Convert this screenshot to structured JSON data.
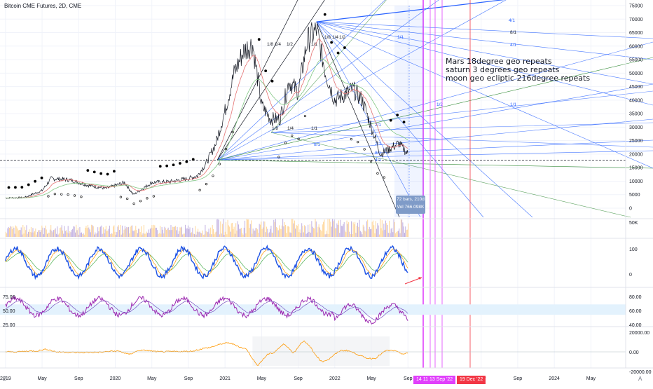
{
  "header": {
    "ticker": "Bitcoin CME Futures, 2D, CME"
  },
  "annotation": {
    "lines": [
      "Mars 18degree geo repeats",
      "saturn 3 degrees geo repeats",
      "moon geo ecliptic 216degree repeats"
    ]
  },
  "measure_label": {
    "bars": "72 bars, 210d",
    "vol": "Vol 766.098K"
  },
  "date_flags": {
    "magenta": "14  11  13 Sep '22",
    "red": "19 Dec '22"
  },
  "corner_badges": {
    "left": "Z",
    "right": "A"
  },
  "colors": {
    "price": "#131722",
    "sar": "#000000",
    "ema_red": "#e57373",
    "ema_green": "#81c784",
    "fan_blue": "#2962ff",
    "fan_green": "#388e3c",
    "fan_black": "#131722",
    "vline_magenta": "#e040fb",
    "vline_red": "#f23645",
    "osc_blue": "#1e53e5",
    "osc_orange": "#ff9800",
    "osc_green": "#4caf50",
    "rsi_purple": "#9c27b0",
    "rsi_band": "#e3f2fd",
    "macd_orange": "#ff9800",
    "macd_blue": "#2962ff",
    "volume": "#b39ddb",
    "grid": "#f0f3fa",
    "axis_text": "#131722"
  },
  "fan_labels": [
    "1/8",
    "1/4",
    "1/2",
    "1/1",
    "1/8",
    "1/4",
    "1/2",
    "1/1",
    "1/8",
    "1/4",
    "8/1",
    "4/1",
    "2/1",
    "1/1",
    "1/2",
    "2/1",
    "8/1",
    "4/1",
    "8/1",
    "4/1",
    "1/1"
  ],
  "chart_data": [
    {
      "type": "line",
      "name": "price",
      "x": [
        "2019-01",
        "2019-03",
        "2019-05",
        "2019-06",
        "2019-08",
        "2019-10",
        "2019-12",
        "2020-02",
        "2020-03",
        "2020-05",
        "2020-07",
        "2020-09",
        "2020-10",
        "2020-11",
        "2020-12",
        "2021-01",
        "2021-02",
        "2021-03",
        "2021-04",
        "2021-05",
        "2021-06",
        "2021-07",
        "2021-08",
        "2021-09",
        "2021-10",
        "2021-11",
        "2021-12",
        "2022-01",
        "2022-02",
        "2022-03",
        "2022-04",
        "2022-05",
        "2022-06",
        "2022-07",
        "2022-08",
        "2022-09"
      ],
      "y": [
        3800,
        3900,
        6500,
        11000,
        10500,
        8500,
        7300,
        9500,
        5000,
        9500,
        9800,
        11000,
        12000,
        17000,
        24000,
        36000,
        50000,
        58000,
        61000,
        38000,
        33000,
        33000,
        47000,
        43000,
        62000,
        66000,
        50000,
        40000,
        42000,
        44000,
        40000,
        30000,
        20000,
        22000,
        24000,
        20000
      ],
      "ylim": [
        -4000,
        76000
      ],
      "yticks": [
        "75000",
        "70000",
        "65000",
        "60000",
        "55000",
        "50000",
        "45000",
        "40000",
        "35000",
        "30000",
        "25000",
        "20000",
        "15000",
        "10000",
        "5000",
        "0"
      ],
      "reference_line": 17800
    },
    {
      "type": "bar",
      "name": "volume",
      "tick_label": "50K"
    },
    {
      "type": "line",
      "name": "oscillator",
      "yticks": [
        "100",
        "0"
      ]
    },
    {
      "type": "line",
      "name": "rsi",
      "yticks_left": [
        "75.00",
        "50.00",
        "25.00"
      ],
      "yticks_right": [
        "80.00",
        "60.00",
        "40.00"
      ],
      "band": [
        40,
        60
      ]
    },
    {
      "type": "line",
      "name": "macd",
      "yticks": [
        "20000.00",
        "0.00",
        "-20000.00"
      ]
    }
  ],
  "x_axis": {
    "labels": [
      "2019",
      "May",
      "Sep",
      "2020",
      "May",
      "Sep",
      "2021",
      "May",
      "Sep",
      "2022",
      "May",
      "Sep",
      "May",
      "Sep",
      "2024",
      "May"
    ],
    "dates": [
      "2019-01",
      "2019-05",
      "2019-09",
      "2020-01",
      "2020-05",
      "2020-09",
      "2021-01",
      "2021-05",
      "2021-09",
      "2022-01",
      "2022-05",
      "2022-09",
      "2023-05",
      "2023-09",
      "2024-01",
      "2024-05"
    ]
  }
}
